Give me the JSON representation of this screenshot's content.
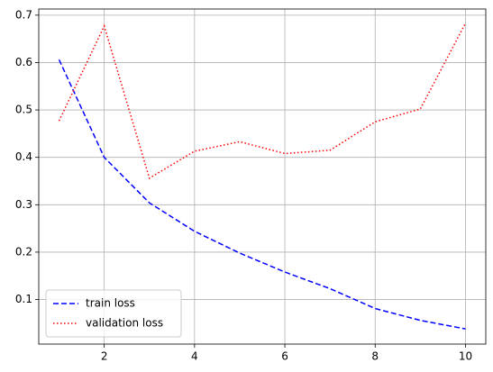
{
  "chart_data": {
    "type": "line",
    "x": [
      1,
      2,
      3,
      4,
      5,
      6,
      7,
      8,
      9,
      10
    ],
    "series": [
      {
        "name": "train loss",
        "color": "#0000ff",
        "linestyle": "dashed",
        "values": [
          0.606,
          0.4,
          0.304,
          0.244,
          0.198,
          0.158,
          0.123,
          0.081,
          0.056,
          0.038
        ]
      },
      {
        "name": "validation loss",
        "color": "#ff0000",
        "linestyle": "dotted",
        "values": [
          0.477,
          0.677,
          0.356,
          0.413,
          0.433,
          0.408,
          0.415,
          0.475,
          0.502,
          0.683
        ]
      }
    ],
    "xlim": [
      0.55,
      10.45
    ],
    "xticks": [
      2,
      4,
      6,
      8,
      10
    ],
    "ylim": [
      0.006,
      0.713
    ],
    "yticks": [
      0.1,
      0.2,
      0.3,
      0.4,
      0.5,
      0.6,
      0.7
    ],
    "grid": true,
    "legend": "lower left"
  }
}
